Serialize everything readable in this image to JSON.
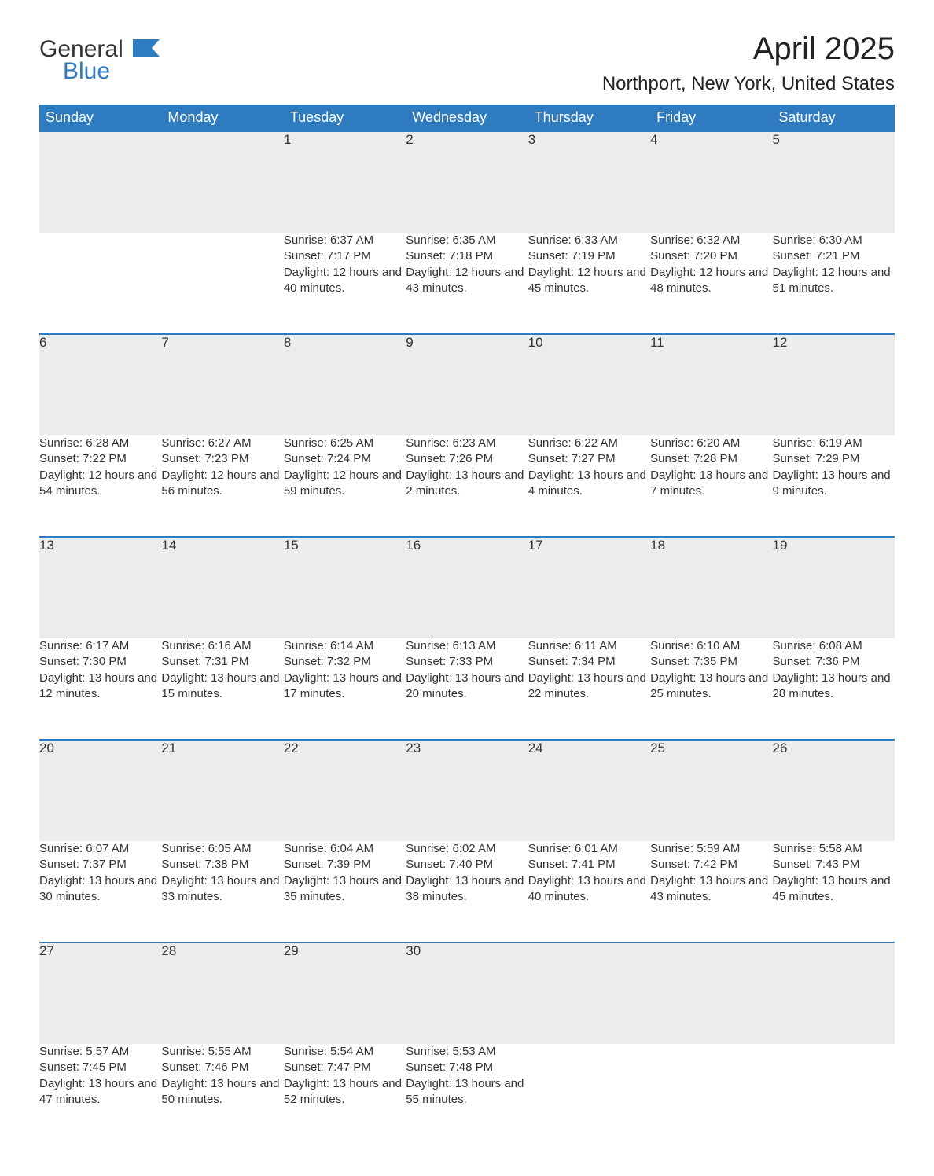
{
  "logo": {
    "text1": "General",
    "text2": "Blue",
    "icon_color": "#2f7bbf"
  },
  "title": "April 2025",
  "subtitle": "Northport, New York, United States",
  "colors": {
    "header_bg": "#2f7bbf",
    "header_text": "#ffffff",
    "daynum_bg": "#ececec",
    "border_top": "#2f7bbf",
    "body_text": "#333333"
  },
  "weekdays": [
    "Sunday",
    "Monday",
    "Tuesday",
    "Wednesday",
    "Thursday",
    "Friday",
    "Saturday"
  ],
  "weeks": [
    {
      "nums": [
        "",
        "",
        "1",
        "2",
        "3",
        "4",
        "5"
      ],
      "cells": [
        "",
        "",
        "Sunrise: 6:37 AM\nSunset: 7:17 PM\nDaylight: 12 hours and 40 minutes.",
        "Sunrise: 6:35 AM\nSunset: 7:18 PM\nDaylight: 12 hours and 43 minutes.",
        "Sunrise: 6:33 AM\nSunset: 7:19 PM\nDaylight: 12 hours and 45 minutes.",
        "Sunrise: 6:32 AM\nSunset: 7:20 PM\nDaylight: 12 hours and 48 minutes.",
        "Sunrise: 6:30 AM\nSunset: 7:21 PM\nDaylight: 12 hours and 51 minutes."
      ]
    },
    {
      "nums": [
        "6",
        "7",
        "8",
        "9",
        "10",
        "11",
        "12"
      ],
      "cells": [
        "Sunrise: 6:28 AM\nSunset: 7:22 PM\nDaylight: 12 hours and 54 minutes.",
        "Sunrise: 6:27 AM\nSunset: 7:23 PM\nDaylight: 12 hours and 56 minutes.",
        "Sunrise: 6:25 AM\nSunset: 7:24 PM\nDaylight: 12 hours and 59 minutes.",
        "Sunrise: 6:23 AM\nSunset: 7:26 PM\nDaylight: 13 hours and 2 minutes.",
        "Sunrise: 6:22 AM\nSunset: 7:27 PM\nDaylight: 13 hours and 4 minutes.",
        "Sunrise: 6:20 AM\nSunset: 7:28 PM\nDaylight: 13 hours and 7 minutes.",
        "Sunrise: 6:19 AM\nSunset: 7:29 PM\nDaylight: 13 hours and 9 minutes."
      ]
    },
    {
      "nums": [
        "13",
        "14",
        "15",
        "16",
        "17",
        "18",
        "19"
      ],
      "cells": [
        "Sunrise: 6:17 AM\nSunset: 7:30 PM\nDaylight: 13 hours and 12 minutes.",
        "Sunrise: 6:16 AM\nSunset: 7:31 PM\nDaylight: 13 hours and 15 minutes.",
        "Sunrise: 6:14 AM\nSunset: 7:32 PM\nDaylight: 13 hours and 17 minutes.",
        "Sunrise: 6:13 AM\nSunset: 7:33 PM\nDaylight: 13 hours and 20 minutes.",
        "Sunrise: 6:11 AM\nSunset: 7:34 PM\nDaylight: 13 hours and 22 minutes.",
        "Sunrise: 6:10 AM\nSunset: 7:35 PM\nDaylight: 13 hours and 25 minutes.",
        "Sunrise: 6:08 AM\nSunset: 7:36 PM\nDaylight: 13 hours and 28 minutes."
      ]
    },
    {
      "nums": [
        "20",
        "21",
        "22",
        "23",
        "24",
        "25",
        "26"
      ],
      "cells": [
        "Sunrise: 6:07 AM\nSunset: 7:37 PM\nDaylight: 13 hours and 30 minutes.",
        "Sunrise: 6:05 AM\nSunset: 7:38 PM\nDaylight: 13 hours and 33 minutes.",
        "Sunrise: 6:04 AM\nSunset: 7:39 PM\nDaylight: 13 hours and 35 minutes.",
        "Sunrise: 6:02 AM\nSunset: 7:40 PM\nDaylight: 13 hours and 38 minutes.",
        "Sunrise: 6:01 AM\nSunset: 7:41 PM\nDaylight: 13 hours and 40 minutes.",
        "Sunrise: 5:59 AM\nSunset: 7:42 PM\nDaylight: 13 hours and 43 minutes.",
        "Sunrise: 5:58 AM\nSunset: 7:43 PM\nDaylight: 13 hours and 45 minutes."
      ]
    },
    {
      "nums": [
        "27",
        "28",
        "29",
        "30",
        "",
        "",
        ""
      ],
      "cells": [
        "Sunrise: 5:57 AM\nSunset: 7:45 PM\nDaylight: 13 hours and 47 minutes.",
        "Sunrise: 5:55 AM\nSunset: 7:46 PM\nDaylight: 13 hours and 50 minutes.",
        "Sunrise: 5:54 AM\nSunset: 7:47 PM\nDaylight: 13 hours and 52 minutes.",
        "Sunrise: 5:53 AM\nSunset: 7:48 PM\nDaylight: 13 hours and 55 minutes.",
        "",
        "",
        ""
      ]
    }
  ]
}
